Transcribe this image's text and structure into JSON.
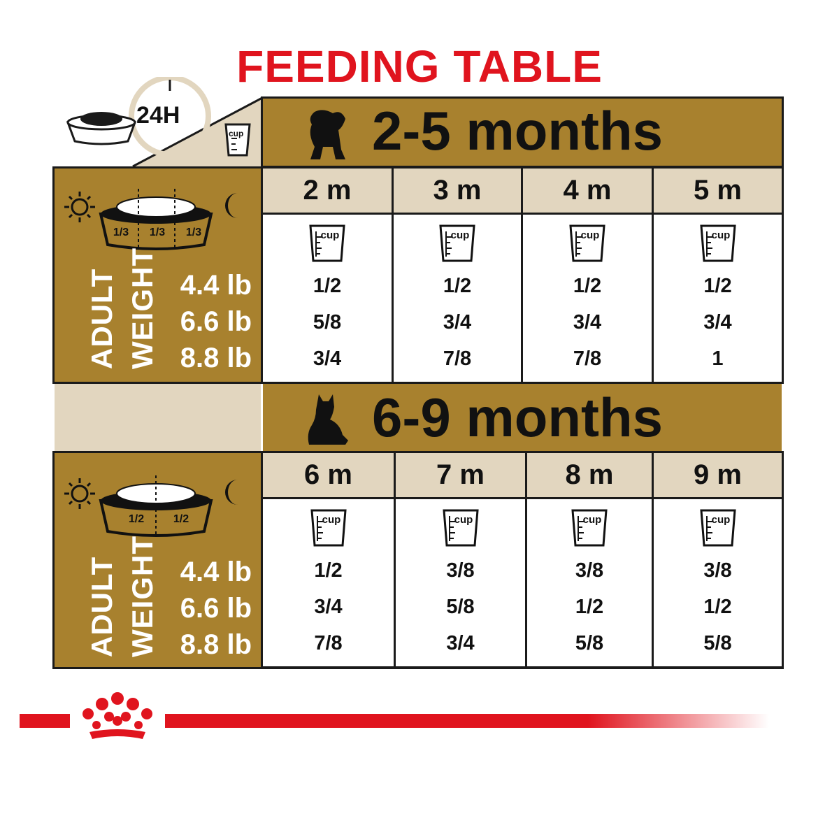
{
  "title": "FEEDING TABLE",
  "header": {
    "hours_label": "24H",
    "cup_label": "cup"
  },
  "section1": {
    "title": "2-5 months",
    "columns": [
      "2 m",
      "3 m",
      "4 m",
      "5 m"
    ],
    "portion_fractions": [
      "1/3",
      "1/3",
      "1/3"
    ],
    "weights": [
      "4.4 lb",
      "6.6 lb",
      "8.8 lb"
    ],
    "side_label_1": "ADULT",
    "side_label_2": "WEIGHT",
    "values": [
      [
        "1/2",
        "5/8",
        "3/4"
      ],
      [
        "1/2",
        "3/4",
        "7/8"
      ],
      [
        "1/2",
        "3/4",
        "7/8"
      ],
      [
        "1/2",
        "3/4",
        "1"
      ]
    ]
  },
  "section2": {
    "title": "6-9 months",
    "columns": [
      "6 m",
      "7 m",
      "8 m",
      "9 m"
    ],
    "portion_fractions": [
      "1/2",
      "1/2"
    ],
    "weights": [
      "4.4 lb",
      "6.6 lb",
      "8.8 lb"
    ],
    "side_label_1": "ADULT",
    "side_label_2": "WEIGHT",
    "values": [
      [
        "1/2",
        "3/4",
        "7/8"
      ],
      [
        "3/8",
        "5/8",
        "3/4"
      ],
      [
        "3/8",
        "1/2",
        "5/8"
      ],
      [
        "3/8",
        "1/2",
        "5/8"
      ]
    ]
  },
  "colors": {
    "gold": "#a8812e",
    "beige": "#e2d6bf",
    "brand_red": "#e0141e",
    "dark": "#1a1a1a"
  },
  "icons": [
    "bowl-icon",
    "clock-icon",
    "cup-icon",
    "sun-icon",
    "moon-icon",
    "puppy-icon",
    "dog-icon",
    "crown-logo"
  ]
}
